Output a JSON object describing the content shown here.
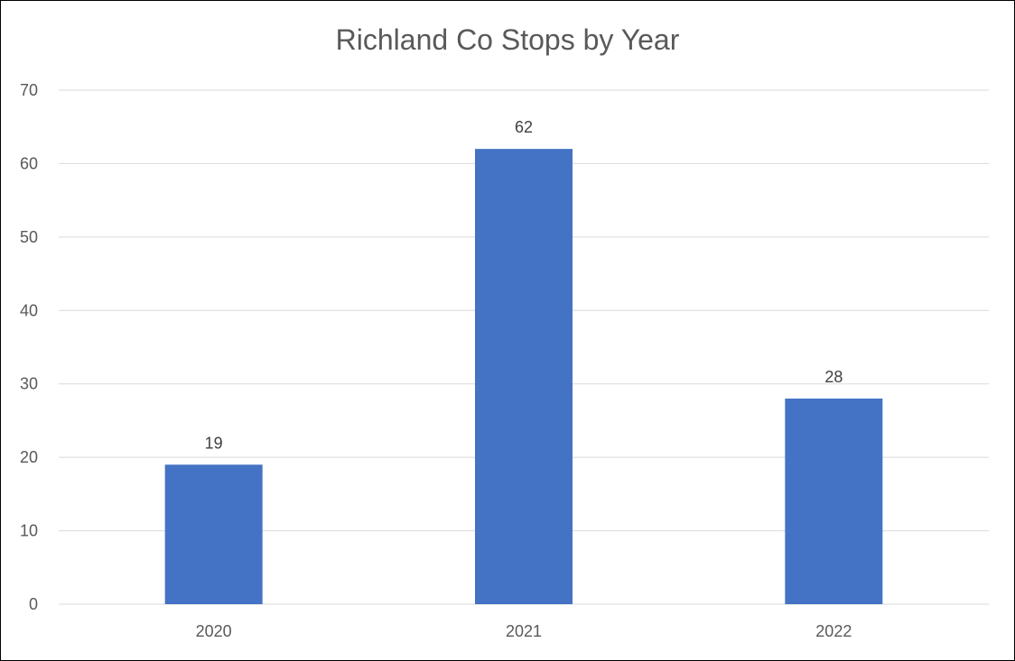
{
  "chart_data": {
    "type": "bar",
    "title": "Richland Co Stops by Year",
    "xlabel": "",
    "ylabel": "",
    "categories": [
      "2020",
      "2021",
      "2022"
    ],
    "series": [
      {
        "values": [
          19,
          62,
          28
        ]
      }
    ],
    "data_labels": [
      "19",
      "62",
      "28"
    ],
    "ylim": [
      0,
      70
    ],
    "yticks": [
      0,
      10,
      20,
      30,
      40,
      50,
      60,
      70
    ],
    "ytick_labels": [
      "0",
      "10",
      "20",
      "30",
      "40",
      "50",
      "60",
      "70"
    ],
    "grid": true,
    "legend": "none",
    "colors": {
      "bar": "#4472C4",
      "gridline": "#D9D9D9",
      "axis_text": "#595959",
      "title_text": "#595959",
      "data_label_text": "#404040",
      "border": "#000000"
    }
  }
}
